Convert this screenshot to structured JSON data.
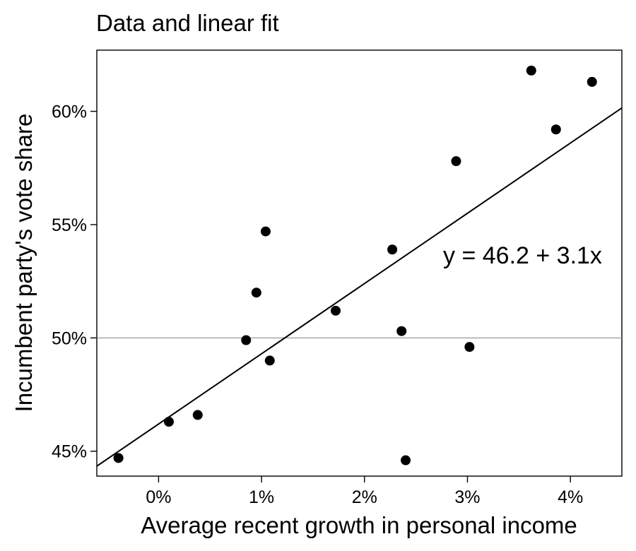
{
  "chart_data": {
    "type": "scatter",
    "title": "Data and linear fit",
    "xlabel": "Average recent growth in personal income",
    "ylabel": "Incumbent party's vote share",
    "xlim": [
      -0.6,
      4.5
    ],
    "ylim": [
      43.9,
      62.7
    ],
    "x_ticks": [
      0,
      1,
      2,
      3,
      4
    ],
    "x_tick_labels": [
      "0%",
      "1%",
      "2%",
      "3%",
      "4%"
    ],
    "y_ticks": [
      45,
      50,
      55,
      60
    ],
    "y_tick_labels": [
      "45%",
      "50%",
      "55%",
      "60%"
    ],
    "reference_line_y": 50,
    "fit": {
      "intercept": 46.2,
      "slope": 3.1,
      "label": "y = 46.2 + 3.1x"
    },
    "points": [
      {
        "x": 2.4,
        "y": 44.6
      },
      {
        "x": 2.89,
        "y": 57.8
      },
      {
        "x": 0.85,
        "y": 49.9
      },
      {
        "x": 4.21,
        "y": 61.3
      },
      {
        "x": 3.02,
        "y": 49.6
      },
      {
        "x": 3.62,
        "y": 61.8
      },
      {
        "x": 1.08,
        "y": 49.0
      },
      {
        "x": -0.39,
        "y": 44.7
      },
      {
        "x": 2.36,
        "y": 50.3
      },
      {
        "x": 1.72,
        "y": 51.2
      },
      {
        "x": 0.1,
        "y": 46.3
      },
      {
        "x": 0.95,
        "y": 52.0
      },
      {
        "x": 3.86,
        "y": 59.2
      },
      {
        "x": 1.04,
        "y": 54.7
      },
      {
        "x": 2.27,
        "y": 53.9
      },
      {
        "x": 0.38,
        "y": 46.6
      }
    ],
    "grid": false,
    "legend": "none"
  }
}
